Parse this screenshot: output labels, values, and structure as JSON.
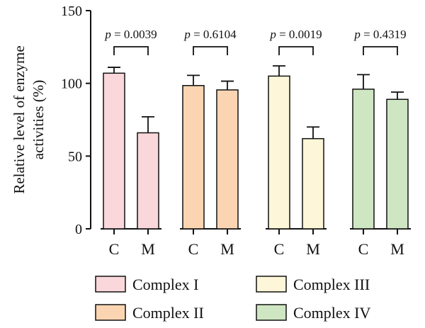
{
  "chart_data": {
    "type": "bar",
    "ylabel_lines": [
      "Relative level of enzyme",
      "activities (%)"
    ],
    "ylim": [
      0,
      150
    ],
    "yticks": [
      0,
      50,
      100,
      150
    ],
    "group_tick_labels": [
      "C",
      "M"
    ],
    "groups": [
      {
        "name": "Complex I",
        "color": "#f9d7da",
        "values": [
          107,
          66
        ],
        "errors": [
          4,
          11
        ],
        "p_prefix": "p",
        "p_value": " = 0.0039"
      },
      {
        "name": "Complex II",
        "color": "#fbd5b2",
        "values": [
          98.5,
          95.5
        ],
        "errors": [
          7,
          6
        ],
        "p_prefix": "p",
        "p_value": " = 0.6104"
      },
      {
        "name": "Complex III",
        "color": "#fdf6d8",
        "values": [
          105,
          62
        ],
        "errors": [
          7,
          8
        ],
        "p_prefix": "p",
        "p_value": " = 0.0019"
      },
      {
        "name": "Complex IV",
        "color": "#cfe6c3",
        "values": [
          96,
          89
        ],
        "errors": [
          10,
          5
        ],
        "p_prefix": "p",
        "p_value": " = 0.4319"
      }
    ]
  }
}
